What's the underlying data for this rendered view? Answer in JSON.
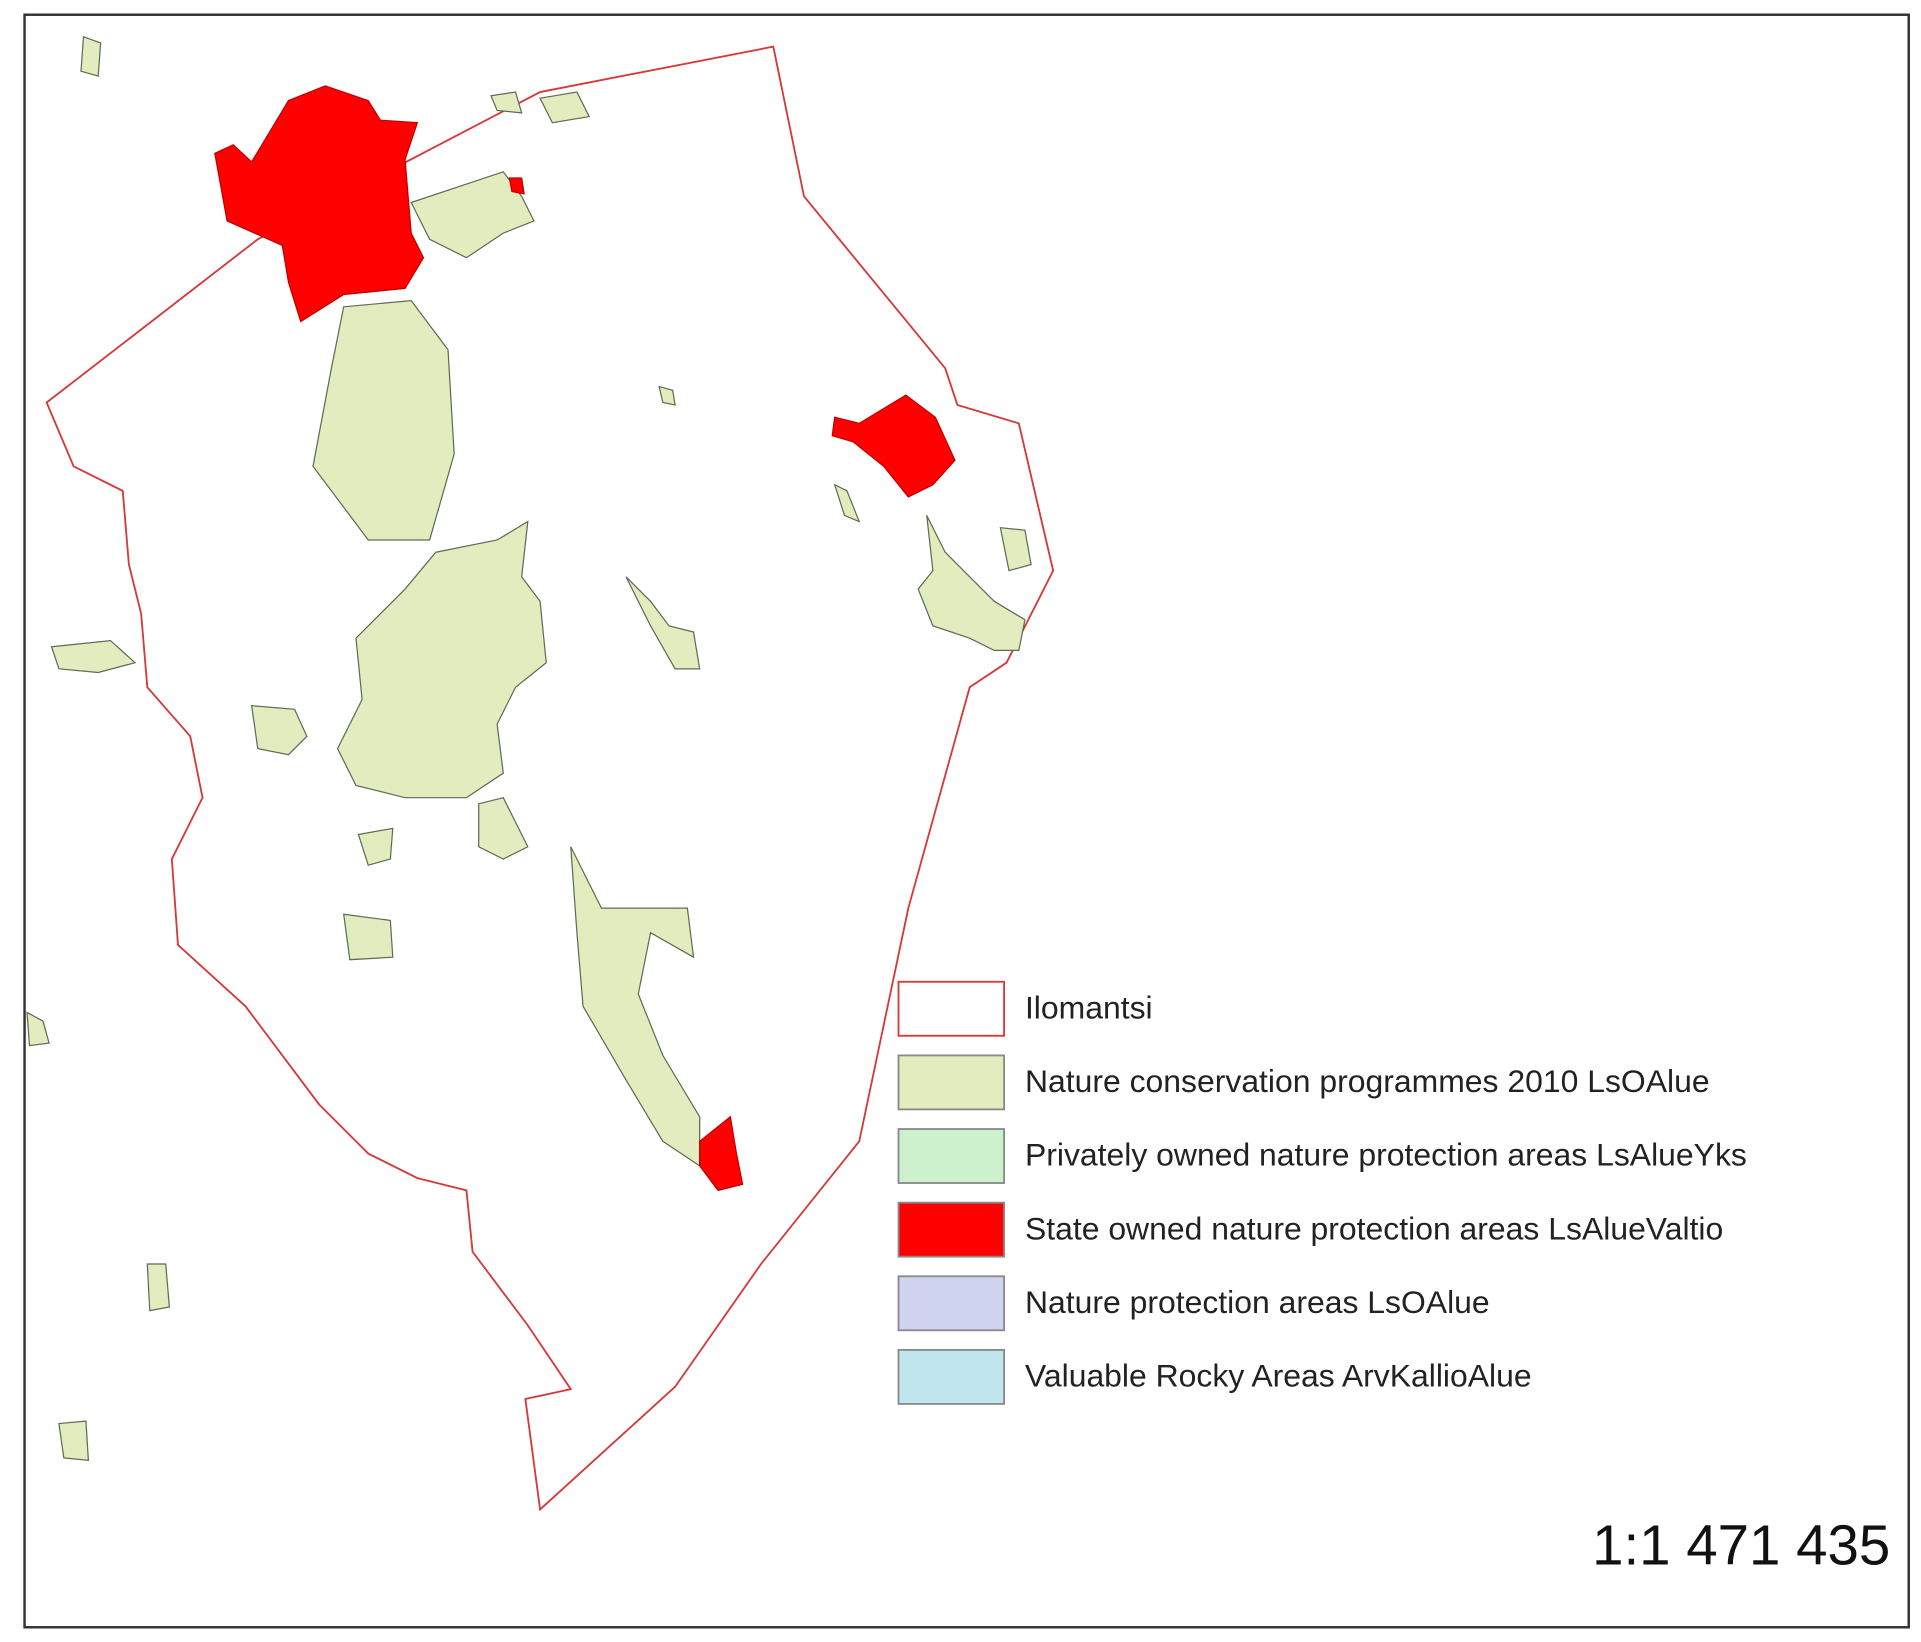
{
  "legend": {
    "items": [
      {
        "label": "Ilomantsi",
        "color": "#ffffff",
        "border": "#d43a3a"
      },
      {
        "label": "Nature conservation programmes 2010 LsOAlue",
        "color": "#e2ecbf",
        "border": "#8a8a8a"
      },
      {
        "label": "Privately owned nature protection areas LsAlueYks",
        "color": "#cdf0cd",
        "border": "#8a8a8a"
      },
      {
        "label": "State owned nature protection areas LsAlueValtio",
        "color": "#ff0000",
        "border": "#8a8a8a"
      },
      {
        "label": "Nature protection areas LsOAlue",
        "color": "#cfd4f0",
        "border": "#8a8a8a"
      },
      {
        "label": "Valuable Rocky Areas ArvKallioAlue",
        "color": "#bfe6ec",
        "border": "#8a8a8a"
      }
    ]
  },
  "scale": "1:1 471 435"
}
